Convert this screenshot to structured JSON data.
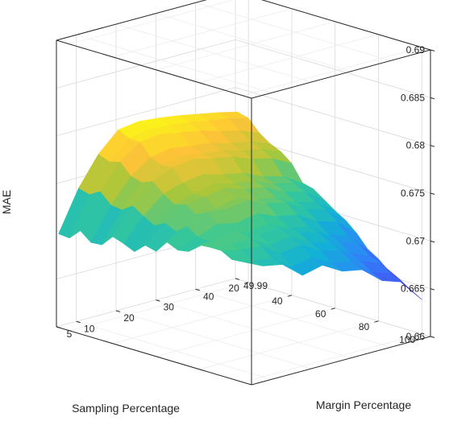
{
  "chart_data": {
    "type": "surface",
    "title": "",
    "xlabel": "Sampling Percentage",
    "ylabel": "Margin Percentage",
    "zlabel": "MAE",
    "x_ticks": [
      "20",
      "40",
      "60",
      "80",
      "100"
    ],
    "y_ticks": [
      "5",
      "10",
      "20",
      "30",
      "40",
      "49.99"
    ],
    "z_ticks": [
      "0.66",
      "0.665",
      "0.67",
      "0.675",
      "0.68",
      "0.685",
      "0.69"
    ],
    "xlim": [
      14,
      104
    ],
    "ylim": [
      5,
      50
    ],
    "zlim": [
      0.66,
      0.69
    ],
    "grid": true,
    "colormap": "parula",
    "surface_edges": {
      "sampling_axis": [
        15,
        20,
        25,
        30,
        35,
        40,
        45,
        50,
        55,
        60,
        65,
        70,
        75,
        80,
        85,
        90,
        95,
        100
      ],
      "margin_axis": [
        5,
        10,
        15,
        20,
        25,
        30,
        35,
        40,
        45,
        49.99
      ],
      "mae_at_margin_5": [
        0.6698,
        0.6697,
        0.6708,
        0.6699,
        0.67,
        0.6712,
        0.6708,
        0.6703,
        0.6713,
        0.671,
        0.6723,
        0.6718,
        0.672,
        0.673,
        0.6731,
        0.6731,
        0.6725,
        0.6726
      ],
      "mae_at_margin_49_99": [
        0.6775,
        0.6772,
        0.676,
        0.6752,
        0.6747,
        0.6738,
        0.6721,
        0.6718,
        0.671,
        0.6702,
        0.6695,
        0.6685,
        0.6672,
        0.6665,
        0.6655,
        0.665,
        0.6642,
        0.6636
      ],
      "mae_at_sampling_15": [
        0.6698,
        0.674,
        0.677,
        0.679,
        0.6793,
        0.6791,
        0.6788,
        0.6784,
        0.678,
        0.6775
      ],
      "mae_at_sampling_100": [
        0.6726,
        0.6716,
        0.6712,
        0.6695,
        0.67,
        0.6688,
        0.6684,
        0.6667,
        0.666,
        0.6636
      ]
    }
  }
}
